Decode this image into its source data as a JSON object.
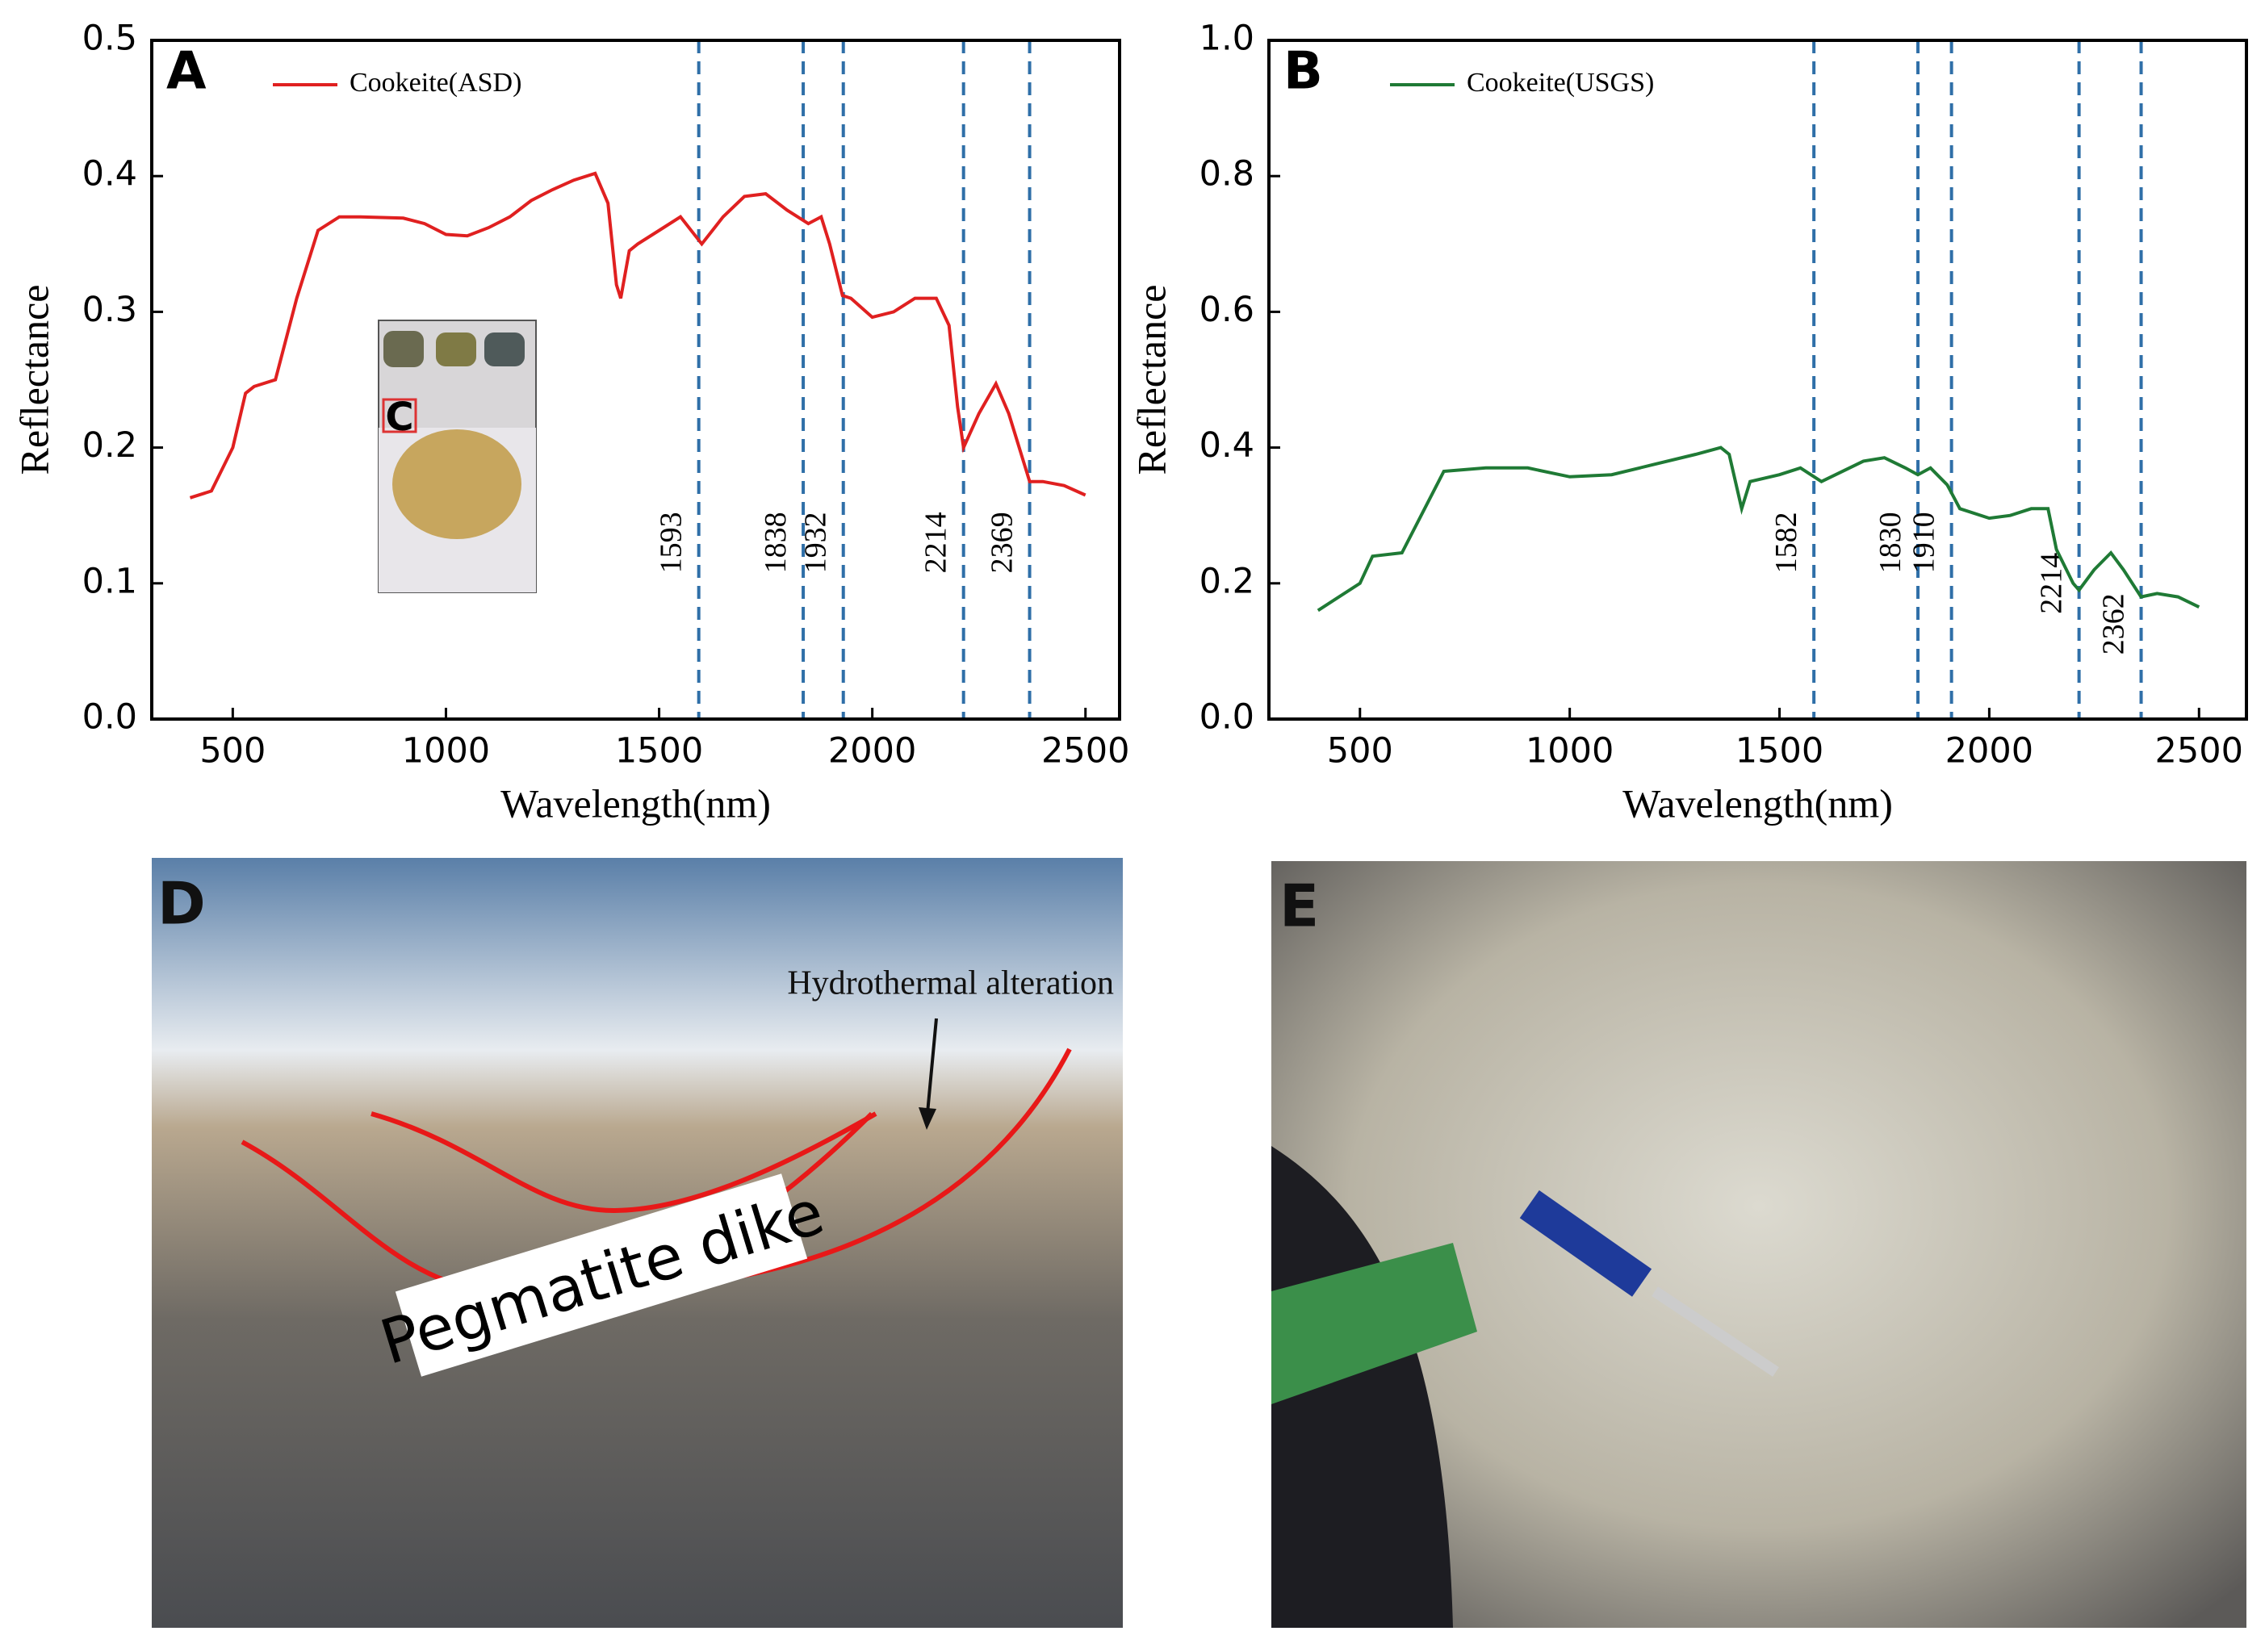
{
  "chart_data": [
    {
      "type": "line",
      "panel_label": "A",
      "xlabel": "Wavelength(nm)",
      "ylabel": "Reflectance",
      "xlim": [
        310,
        2580
      ],
      "xticks": [
        500,
        1000,
        1500,
        2000,
        2500
      ],
      "ylim": [
        0,
        0.5
      ],
      "yticks": [
        {
          "value": 0,
          "label": "0.0"
        },
        0.1,
        0.2,
        0.3,
        0.4,
        0.5
      ],
      "x": [
        400,
        450,
        500,
        530,
        550,
        600,
        650,
        700,
        750,
        800,
        900,
        950,
        1000,
        1050,
        1100,
        1150,
        1200,
        1250,
        1300,
        1350,
        1380,
        1400,
        1410,
        1430,
        1450,
        1500,
        1550,
        1600,
        1650,
        1700,
        1750,
        1800,
        1850,
        1880,
        1900,
        1930,
        1950,
        2000,
        2050,
        2100,
        2150,
        2180,
        2200,
        2214,
        2250,
        2290,
        2320,
        2369,
        2400,
        2450,
        2500
      ],
      "series": [
        {
          "name": "Cookeite(ASD)",
          "color": "#e02020",
          "values": [
            0.163,
            0.168,
            0.2,
            0.24,
            0.245,
            0.25,
            0.31,
            0.36,
            0.37,
            0.37,
            0.369,
            0.365,
            0.357,
            0.356,
            0.362,
            0.37,
            0.382,
            0.39,
            0.397,
            0.402,
            0.38,
            0.32,
            0.31,
            0.345,
            0.35,
            0.36,
            0.37,
            0.35,
            0.37,
            0.385,
            0.387,
            0.375,
            0.365,
            0.37,
            0.35,
            0.312,
            0.31,
            0.296,
            0.3,
            0.31,
            0.31,
            0.29,
            0.23,
            0.2,
            0.225,
            0.247,
            0.225,
            0.175,
            0.175,
            0.172,
            0.165
          ]
        }
      ],
      "vlines": [
        1593,
        1838,
        1932,
        2214,
        2369
      ],
      "vline_color": "#2f6fa8"
    },
    {
      "type": "line",
      "panel_label": "B",
      "xlabel": "Wavelength(nm)",
      "ylabel": "Reflectance",
      "xlim": [
        283,
        2613
      ],
      "xticks": [
        500,
        1000,
        1500,
        2000,
        2500
      ],
      "ylim": [
        0,
        1
      ],
      "yticks": [
        {
          "value": 0,
          "label": "0.0"
        },
        0.2,
        0.4,
        0.6,
        0.8,
        {
          "value": 1,
          "label": "1.0"
        }
      ],
      "x": [
        400,
        500,
        530,
        600,
        700,
        800,
        900,
        1000,
        1100,
        1200,
        1300,
        1360,
        1380,
        1410,
        1430,
        1500,
        1550,
        1600,
        1700,
        1750,
        1800,
        1830,
        1860,
        1900,
        1930,
        2000,
        2050,
        2100,
        2140,
        2160,
        2200,
        2214,
        2250,
        2290,
        2320,
        2362,
        2400,
        2450,
        2500
      ],
      "series": [
        {
          "name": "Cookeite(USGS)",
          "color": "#1f7a35",
          "values": [
            0.16,
            0.2,
            0.24,
            0.245,
            0.365,
            0.37,
            0.37,
            0.357,
            0.36,
            0.375,
            0.39,
            0.4,
            0.39,
            0.31,
            0.35,
            0.36,
            0.37,
            0.35,
            0.38,
            0.385,
            0.37,
            0.36,
            0.37,
            0.345,
            0.31,
            0.296,
            0.3,
            0.31,
            0.31,
            0.25,
            0.2,
            0.19,
            0.22,
            0.245,
            0.22,
            0.18,
            0.185,
            0.18,
            0.165
          ]
        }
      ],
      "vlines": [
        1582,
        1830,
        1910,
        2214,
        2362
      ],
      "vline_color": "#2f6fa8"
    }
  ],
  "photos": {
    "c_label": "C",
    "d_label": "D",
    "d_annotation": "Hydrothermal alteration",
    "d_dike": "Pegmatite dike",
    "e_label": "E"
  }
}
